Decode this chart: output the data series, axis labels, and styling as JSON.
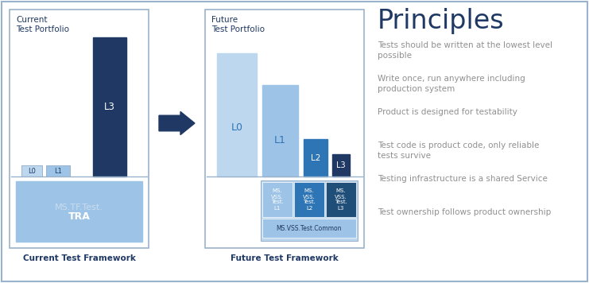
{
  "bg_color": "#ffffff",
  "border_color": "#9ab3cc",
  "dark_blue": "#1f3864",
  "mid_blue": "#2e75b6",
  "light_blue": "#9dc3e6",
  "lighter_blue": "#bdd7ee",
  "ms_dark": "#1f4e79",
  "arrow_color": "#1f3864",
  "box_text_color": "#1f3864",
  "principles_title_color": "#1f3864",
  "principles_color": "#909090",
  "principles_title": "Principles",
  "principles": [
    "Tests should be written at the lowest level\npossible",
    "Write once, run anywhere including\nproduction system",
    "Product is designed for testability",
    "Test code is product code, only reliable\ntests survive",
    "Testing infrastructure is a shared Service",
    "Test ownership follows product ownership"
  ]
}
